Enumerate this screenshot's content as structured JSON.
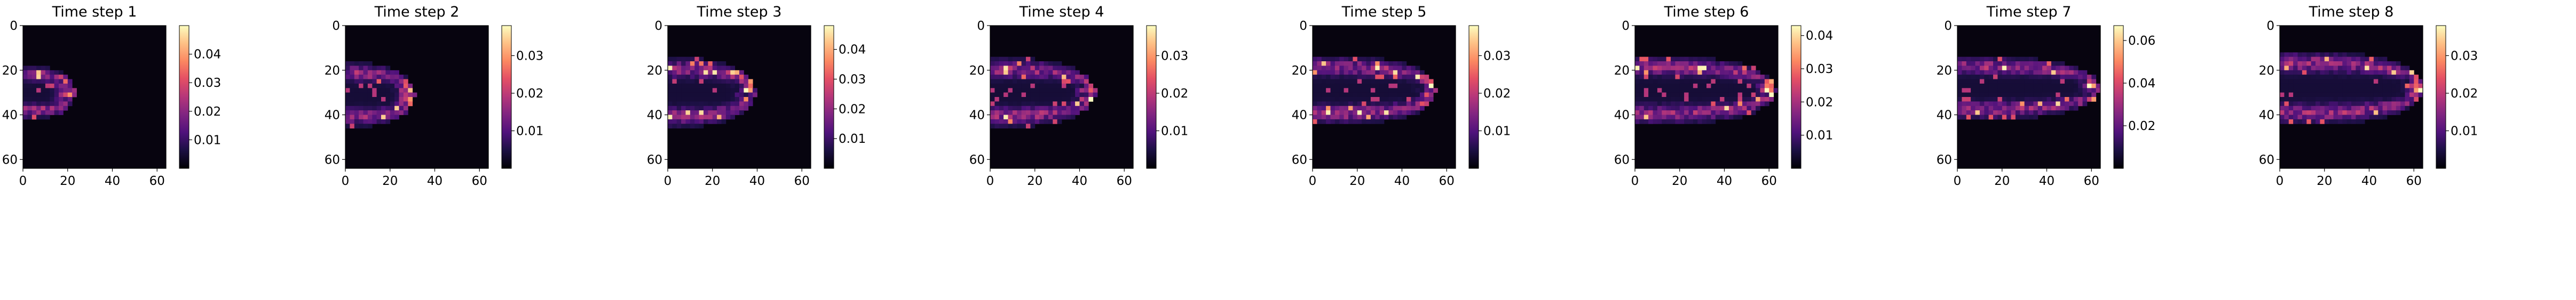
{
  "chart_data": [
    {
      "type": "heatmap",
      "title": "Time step 1",
      "xticks": [
        0,
        20,
        40,
        60
      ],
      "yticks": [
        0,
        20,
        40,
        60
      ],
      "extent": [
        0,
        64
      ],
      "colormap": "magma",
      "colorbar_range": [
        0,
        0.05
      ],
      "colorbar_ticks": [
        0.01,
        0.02,
        0.03,
        0.04
      ],
      "blob": {
        "x_start": 0,
        "x_tip": 22,
        "y_center": 30,
        "half_width": 9
      }
    },
    {
      "type": "heatmap",
      "title": "Time step 2",
      "xticks": [
        0,
        20,
        40,
        60
      ],
      "yticks": [
        0,
        20,
        40,
        60
      ],
      "extent": [
        0,
        64
      ],
      "colormap": "magma",
      "colorbar_range": [
        0,
        0.038
      ],
      "colorbar_ticks": [
        0.01,
        0.02,
        0.03
      ],
      "blob": {
        "x_start": 0,
        "x_tip": 30,
        "y_center": 31,
        "half_width": 11
      }
    },
    {
      "type": "heatmap",
      "title": "Time step 3",
      "xticks": [
        0,
        20,
        40,
        60
      ],
      "yticks": [
        0,
        20,
        40,
        60
      ],
      "extent": [
        0,
        64
      ],
      "colormap": "magma",
      "colorbar_range": [
        0,
        0.048
      ],
      "colorbar_ticks": [
        0.01,
        0.02,
        0.03,
        0.04
      ],
      "blob": {
        "x_start": 0,
        "x_tip": 38,
        "y_center": 30,
        "half_width": 12
      }
    },
    {
      "type": "heatmap",
      "title": "Time step 4",
      "xticks": [
        0,
        20,
        40,
        60
      ],
      "yticks": [
        0,
        20,
        40,
        60
      ],
      "extent": [
        0,
        64
      ],
      "colormap": "magma",
      "colorbar_range": [
        0,
        0.038
      ],
      "colorbar_ticks": [
        0.01,
        0.02,
        0.03
      ],
      "blob": {
        "x_start": 0,
        "x_tip": 46,
        "y_center": 30,
        "half_width": 12
      }
    },
    {
      "type": "heatmap",
      "title": "Time step 5",
      "xticks": [
        0,
        20,
        40,
        60
      ],
      "yticks": [
        0,
        20,
        40,
        60
      ],
      "extent": [
        0,
        64
      ],
      "colormap": "magma",
      "colorbar_range": [
        0,
        0.038
      ],
      "colorbar_ticks": [
        0.01,
        0.02,
        0.03
      ],
      "blob": {
        "x_start": 0,
        "x_tip": 55,
        "y_center": 29,
        "half_width": 12
      }
    },
    {
      "type": "heatmap",
      "title": "Time step 6",
      "xticks": [
        0,
        20,
        40,
        60
      ],
      "yticks": [
        0,
        20,
        40,
        60
      ],
      "extent": [
        0,
        64
      ],
      "colormap": "magma",
      "colorbar_range": [
        0,
        0.043
      ],
      "colorbar_ticks": [
        0.01,
        0.02,
        0.03,
        0.04
      ],
      "blob": {
        "x_start": 0,
        "x_tip": 62,
        "y_center": 29,
        "half_width": 12
      }
    },
    {
      "type": "heatmap",
      "title": "Time step 7",
      "xticks": [
        0,
        20,
        40,
        60
      ],
      "yticks": [
        0,
        20,
        40,
        60
      ],
      "extent": [
        0,
        64
      ],
      "colormap": "magma",
      "colorbar_range": [
        0,
        0.067
      ],
      "colorbar_ticks": [
        0.02,
        0.04,
        0.06
      ],
      "blob": {
        "x_start": 0,
        "x_tip": 63,
        "y_center": 28,
        "half_width": 11
      }
    },
    {
      "type": "heatmap",
      "title": "Time step 8",
      "xticks": [
        0,
        20,
        40,
        60
      ],
      "yticks": [
        0,
        20,
        40,
        60
      ],
      "extent": [
        0,
        64
      ],
      "colormap": "magma",
      "colorbar_range": [
        0,
        0.038
      ],
      "colorbar_ticks": [
        0.01,
        0.02,
        0.03
      ],
      "blob": {
        "x_start": 0,
        "x_tip": 64,
        "y_center": 28,
        "half_width": 13
      }
    }
  ]
}
